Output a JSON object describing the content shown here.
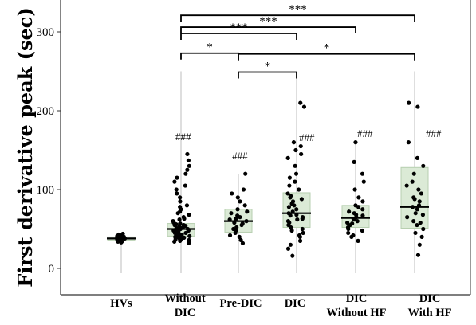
{
  "chart_data": {
    "type": "scatter",
    "ylabel": "First derivative peak (sec)",
    "xlabel": "",
    "ylim": [
      -8,
      335
    ],
    "yticks": [
      "0",
      "100",
      "200",
      "300"
    ],
    "categories": [
      {
        "lines": [
          "HVs"
        ]
      },
      {
        "lines": [
          "Without",
          "DIC"
        ]
      },
      {
        "lines": [
          "Pre-DIC"
        ]
      },
      {
        "lines": [
          "DIC"
        ]
      },
      {
        "lines": [
          "DIC",
          "Without HF"
        ]
      },
      {
        "lines": [
          "DIC",
          "With HF"
        ]
      }
    ],
    "groups": [
      {
        "points": [
          33,
          34,
          35,
          36,
          36,
          37,
          37,
          38,
          38,
          39,
          39,
          40,
          40,
          41,
          42,
          43,
          44,
          34,
          37,
          39,
          41,
          38
        ],
        "median": 38,
        "q1": 36,
        "q3": 40,
        "whisker_max": 44,
        "annotation": ""
      },
      {
        "points": [
          32,
          33,
          34,
          35,
          36,
          37,
          38,
          38,
          39,
          40,
          40,
          41,
          42,
          42,
          43,
          44,
          45,
          45,
          46,
          47,
          48,
          48,
          49,
          50,
          50,
          51,
          52,
          53,
          54,
          55,
          55,
          56,
          57,
          58,
          60,
          62,
          63,
          65,
          68,
          70,
          72,
          75,
          78,
          80,
          85,
          90,
          95,
          100,
          105,
          110,
          115,
          120,
          125,
          130,
          137,
          145
        ],
        "median": 50,
        "q1": 41,
        "q3": 57,
        "whisker_max": 250,
        "annotation": "###"
      },
      {
        "points": [
          32,
          36,
          40,
          42,
          45,
          48,
          50,
          52,
          55,
          57,
          58,
          60,
          62,
          63,
          65,
          67,
          70,
          72,
          75,
          80,
          85,
          90,
          95,
          100,
          120
        ],
        "median": 60,
        "q1": 46,
        "q3": 75,
        "whisker_max": 120,
        "annotation": "###"
      },
      {
        "points": [
          16,
          25,
          30,
          35,
          40,
          42,
          45,
          48,
          50,
          52,
          55,
          58,
          60,
          62,
          63,
          65,
          67,
          68,
          70,
          72,
          75,
          78,
          80,
          82,
          85,
          88,
          90,
          92,
          95,
          100,
          105,
          110,
          115,
          120,
          130,
          140,
          145,
          150,
          155,
          160,
          205,
          210
        ],
        "median": 70,
        "q1": 52,
        "q3": 96,
        "whisker_max": 250,
        "annotation": "###"
      },
      {
        "points": [
          35,
          40,
          42,
          45,
          48,
          50,
          52,
          55,
          57,
          58,
          60,
          62,
          63,
          65,
          67,
          68,
          70,
          72,
          75,
          78,
          80,
          85,
          90,
          100,
          110,
          120,
          135,
          160
        ],
        "median": 64,
        "q1": 52,
        "q3": 80,
        "whisker_max": 160,
        "annotation": "###"
      },
      {
        "points": [
          17,
          30,
          40,
          45,
          50,
          55,
          58,
          60,
          65,
          68,
          70,
          75,
          78,
          80,
          85,
          88,
          90,
          95,
          100,
          105,
          110,
          120,
          130,
          140,
          160,
          205,
          210
        ],
        "median": 78,
        "q1": 51,
        "q3": 128,
        "whisker_max": 250,
        "annotation": "###"
      }
    ],
    "comparisons": [
      {
        "from": 1,
        "to": 2,
        "y": 273,
        "label": "*"
      },
      {
        "from": 1,
        "to": 3,
        "y": 298,
        "label": "***"
      },
      {
        "from": 1,
        "to": 4,
        "y": 306,
        "label": "***"
      },
      {
        "from": 1,
        "to": 5,
        "y": 321,
        "label": "***"
      },
      {
        "from": 2,
        "to": 5,
        "y": 272,
        "label": "*"
      },
      {
        "from": 2,
        "to": 3,
        "y": 249,
        "label": "*"
      }
    ],
    "colors": {
      "box_fill": "#dbead6",
      "box_edge": "#b7cfb0",
      "point": "#000000",
      "median": "#000000",
      "guide": "#c8c8c8",
      "frame": "#333333"
    }
  }
}
